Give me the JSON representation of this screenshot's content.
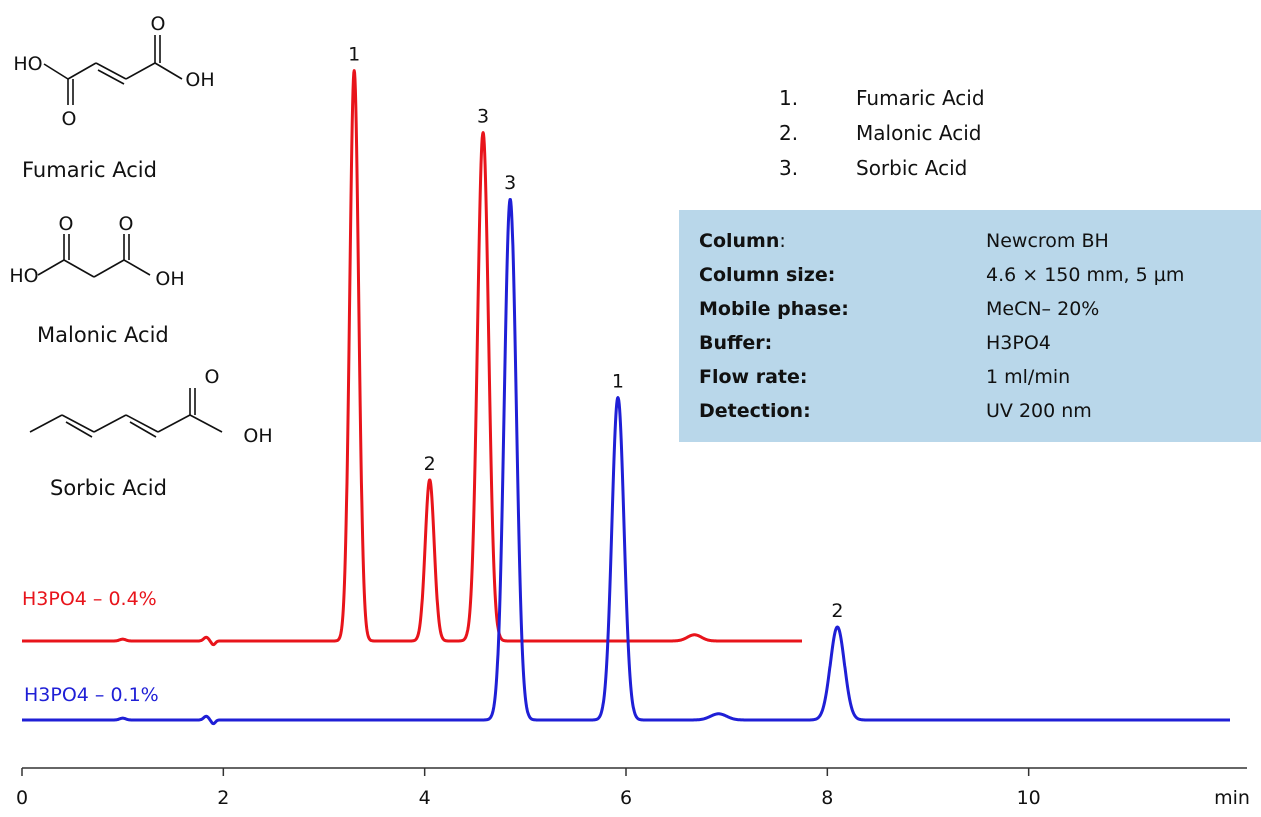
{
  "chart_data": {
    "type": "line",
    "xlabel": "min",
    "xlim": [
      0,
      12
    ],
    "xticks": [
      0,
      2,
      4,
      6,
      8,
      10
    ],
    "series": [
      {
        "name": "H3PO4 – 0.4%",
        "color": "#e8141b",
        "x_end": 7.75,
        "peaks": [
          {
            "label": "1",
            "rt": 3.3,
            "height": 0.92,
            "width": 0.045
          },
          {
            "label": "2",
            "rt": 4.05,
            "height": 0.26,
            "width": 0.045
          },
          {
            "label": "3",
            "rt": 4.58,
            "height": 0.82,
            "width": 0.055
          },
          {
            "label": "",
            "rt": 6.68,
            "height": 0.01,
            "width": 0.07
          }
        ]
      },
      {
        "name": "H3PO4 – 0.1%",
        "color": "#1f1fd6",
        "x_end": 12,
        "peaks": [
          {
            "label": "3",
            "rt": 4.85,
            "height": 0.84,
            "width": 0.06
          },
          {
            "label": "1",
            "rt": 5.92,
            "height": 0.52,
            "width": 0.06
          },
          {
            "label": "",
            "rt": 6.92,
            "height": 0.01,
            "width": 0.08
          },
          {
            "label": "2",
            "rt": 8.1,
            "height": 0.15,
            "width": 0.07
          }
        ]
      }
    ]
  },
  "legend": {
    "items": [
      {
        "num": "1.",
        "name": "Fumaric Acid"
      },
      {
        "num": "2.",
        "name": "Malonic Acid"
      },
      {
        "num": "3.",
        "name": "Sorbic Acid"
      }
    ]
  },
  "conditions": [
    {
      "key": "Column",
      "sep": ":",
      "value": "Newcrom BH"
    },
    {
      "key": "Column size:",
      "sep": "",
      "value": "4.6 × 150 mm, 5 µm"
    },
    {
      "key": "Mobile phase:",
      "sep": "",
      "value": "MeCN– 20%"
    },
    {
      "key": "Buffer:",
      "sep": "",
      "value": "H3PO4"
    },
    {
      "key": "Flow rate:",
      "sep": "",
      "value": "1 ml/min"
    },
    {
      "key": "Detection:",
      "sep": "",
      "value": "UV 200 nm"
    }
  ],
  "compounds": [
    {
      "name": "Fumaric Acid"
    },
    {
      "name": "Malonic Acid"
    },
    {
      "name": "Sorbic Acid"
    }
  ],
  "structure_labels": {
    "ho": "HO",
    "oh": "OH",
    "o": "O"
  }
}
